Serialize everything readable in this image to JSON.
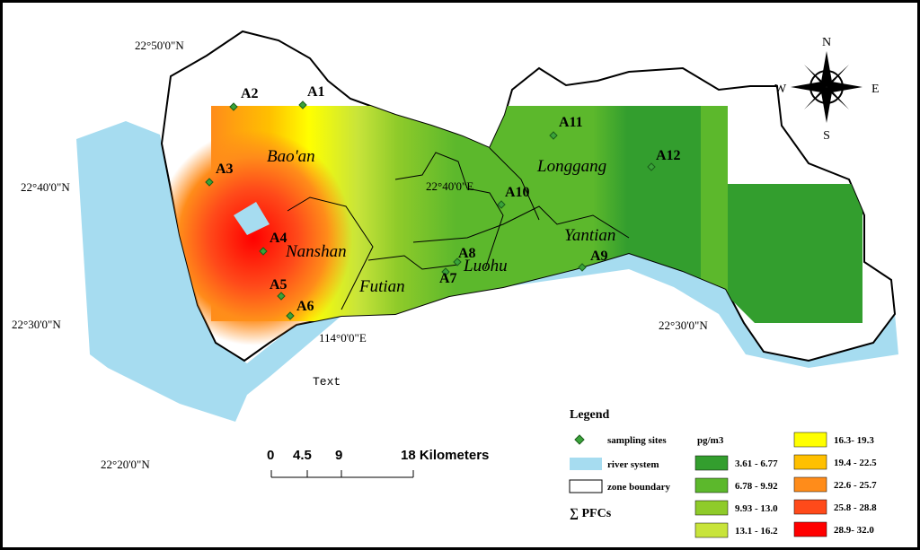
{
  "map": {
    "coordinate_labels": [
      "22°50'0\"N",
      "22°40'0\"N",
      "22°30'0\"N",
      "22°20'0\"N",
      "22°40'0\"E",
      "114°0'0\"E",
      "22°30'0\"N"
    ],
    "sites": [
      "A1",
      "A2",
      "A3",
      "A4",
      "A5",
      "A6",
      "A7",
      "A8",
      "A9",
      "A10",
      "A11",
      "A12"
    ],
    "districts": [
      "Bao'an",
      "Nanshan",
      "Futian",
      "Luohu",
      "Yantian",
      "Longgang"
    ],
    "placeholder": "Text",
    "compass": {
      "n": "N",
      "s": "S",
      "e": "E",
      "w": "W"
    },
    "scale_bar": [
      "0",
      "4.5",
      "9",
      "18 Kilometers"
    ]
  },
  "legend": {
    "title": "Legend",
    "items": [
      "sampling sites",
      "river system",
      "zone boundary"
    ],
    "variable": "∑ PFCs",
    "unit": "pg/m3",
    "classes": [
      {
        "label": "3.61 - 6.77",
        "color": "#339e2e"
      },
      {
        "label": "6.78 - 9.92",
        "color": "#5cb82c"
      },
      {
        "label": "9.93 - 13.0",
        "color": "#8fcb2a"
      },
      {
        "label": "13.1 - 16.2",
        "color": "#c8e43a"
      },
      {
        "label": "16.3- 19.3",
        "color": "#ffff00"
      },
      {
        "label": "19.4 - 22.5",
        "color": "#ffc000"
      },
      {
        "label": "22.6 - 25.7",
        "color": "#ff8c1a"
      },
      {
        "label": "25.8 - 28.8",
        "color": "#ff4a1a"
      },
      {
        "label": "28.9- 32.0",
        "color": "#ff0000"
      }
    ]
  }
}
